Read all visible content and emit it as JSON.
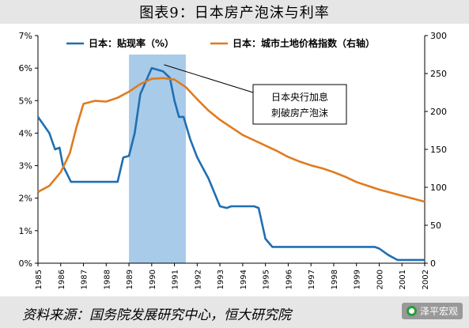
{
  "title": "图表9：日本房产泡沫与利率",
  "source": "资料来源：国务院发展研究中心，恒大研究院",
  "watermark": "泽平宏观",
  "colors": {
    "rate_line": "#1f6fb2",
    "land_line": "#e07b1f",
    "highlight": "#a9cbea"
  },
  "chart_data": {
    "type": "line",
    "x_ticks": [
      "1985",
      "1986",
      "1987",
      "1988",
      "1989",
      "1990",
      "1991",
      "1992",
      "1993",
      "1994",
      "1995",
      "1996",
      "1997",
      "1998",
      "1999",
      "2000",
      "2001",
      "2002"
    ],
    "xlim": [
      1985,
      2002
    ],
    "y_left": {
      "ticks": [
        "0%",
        "1%",
        "2%",
        "3%",
        "4%",
        "5%",
        "6%",
        "7%"
      ],
      "lim": [
        0,
        7
      ]
    },
    "y_right": {
      "ticks": [
        "0",
        "50",
        "100",
        "150",
        "200",
        "250",
        "300"
      ],
      "lim": [
        0,
        300
      ]
    },
    "series": [
      {
        "name": "日本：贴现率（%）",
        "axis": "left",
        "points": [
          [
            1985.0,
            4.5
          ],
          [
            1985.5,
            4.0
          ],
          [
            1985.75,
            3.5
          ],
          [
            1985.95,
            3.55
          ],
          [
            1986.1,
            3.0
          ],
          [
            1986.45,
            2.5
          ],
          [
            1987.0,
            2.5
          ],
          [
            1987.5,
            2.5
          ],
          [
            1988.0,
            2.5
          ],
          [
            1988.5,
            2.5
          ],
          [
            1988.75,
            3.25
          ],
          [
            1989.0,
            3.3
          ],
          [
            1989.25,
            4.0
          ],
          [
            1989.5,
            5.2
          ],
          [
            1990.0,
            6.0
          ],
          [
            1990.5,
            5.9
          ],
          [
            1990.8,
            5.7
          ],
          [
            1991.0,
            5.0
          ],
          [
            1991.2,
            4.5
          ],
          [
            1991.4,
            4.5
          ],
          [
            1991.7,
            3.8
          ],
          [
            1992.0,
            3.25
          ],
          [
            1992.5,
            2.6
          ],
          [
            1993.0,
            1.75
          ],
          [
            1993.3,
            1.7
          ],
          [
            1993.5,
            1.75
          ],
          [
            1994.0,
            1.75
          ],
          [
            1994.5,
            1.75
          ],
          [
            1994.7,
            1.7
          ],
          [
            1995.0,
            0.75
          ],
          [
            1995.3,
            0.5
          ],
          [
            1996.0,
            0.5
          ],
          [
            1997.0,
            0.5
          ],
          [
            1998.0,
            0.5
          ],
          [
            1999.0,
            0.5
          ],
          [
            1999.8,
            0.5
          ],
          [
            2000.0,
            0.45
          ],
          [
            2000.4,
            0.25
          ],
          [
            2000.8,
            0.1
          ],
          [
            2001.3,
            0.1
          ],
          [
            2002.0,
            0.1
          ]
        ]
      },
      {
        "name": "日本：城市土地价格指数（右轴）",
        "axis": "right",
        "points": [
          [
            1985.0,
            94
          ],
          [
            1985.5,
            102
          ],
          [
            1986.0,
            120
          ],
          [
            1986.4,
            145
          ],
          [
            1986.7,
            180
          ],
          [
            1987.0,
            210
          ],
          [
            1987.5,
            214
          ],
          [
            1988.0,
            213
          ],
          [
            1988.5,
            218
          ],
          [
            1989.0,
            226
          ],
          [
            1989.5,
            236
          ],
          [
            1990.0,
            243
          ],
          [
            1990.5,
            244
          ],
          [
            1991.0,
            242
          ],
          [
            1991.5,
            232
          ],
          [
            1992.0,
            216
          ],
          [
            1992.5,
            201
          ],
          [
            1993.0,
            189
          ],
          [
            1993.5,
            179
          ],
          [
            1994.0,
            169
          ],
          [
            1994.5,
            162
          ],
          [
            1995.0,
            155
          ],
          [
            1995.5,
            148
          ],
          [
            1996.0,
            140
          ],
          [
            1996.5,
            134
          ],
          [
            1997.0,
            129
          ],
          [
            1997.5,
            125
          ],
          [
            1998.0,
            120
          ],
          [
            1998.5,
            114
          ],
          [
            1999.0,
            107
          ],
          [
            1999.5,
            102
          ],
          [
            2000.0,
            97
          ],
          [
            2000.5,
            93
          ],
          [
            2001.0,
            89
          ],
          [
            2001.5,
            85
          ],
          [
            2002.0,
            81
          ]
        ]
      }
    ],
    "highlight_band": {
      "from": 1989.0,
      "to": 1991.5
    },
    "annotation": {
      "lines": [
        "日本央行加息",
        "刺破房产泡沫"
      ],
      "target": [
        1990.4,
        6.2
      ]
    },
    "legend_position": "top",
    "grid": false
  }
}
